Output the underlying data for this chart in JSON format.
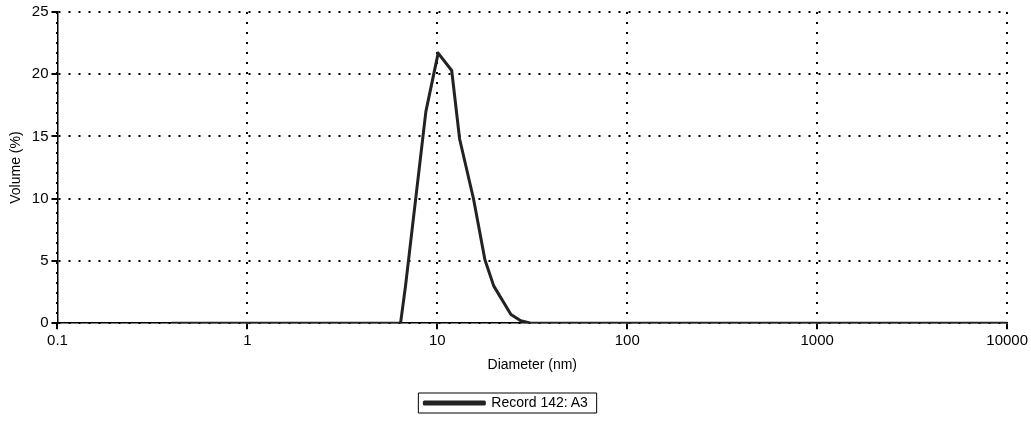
{
  "chart_data": {
    "type": "line",
    "xlabel": "Diameter (nm)",
    "ylabel": "Volume (%)",
    "log": "x",
    "xlim": [
      0.1,
      10000
    ],
    "xticks": [
      0.1,
      1,
      10,
      100,
      1000,
      10000
    ],
    "ylim": [
      0,
      25
    ],
    "yticks": [
      0,
      5,
      10,
      15,
      20,
      25
    ],
    "grid": true,
    "legend": "bottom",
    "marker": "none",
    "line_style": "solid",
    "series": [
      {
        "name": "Record 142: A3",
        "color": "#222222",
        "x": [
          0.4,
          6.4,
          6.8,
          8.7,
          10.1,
          11.9,
          13.1,
          15.5,
          17.8,
          19.8,
          24.4,
          27.5,
          31,
          10000
        ],
        "values": [
          0,
          0,
          3.0,
          17.0,
          21.7,
          20.3,
          14.8,
          10,
          5.1,
          3.0,
          0.7,
          0.2,
          0,
          0
        ]
      }
    ]
  }
}
